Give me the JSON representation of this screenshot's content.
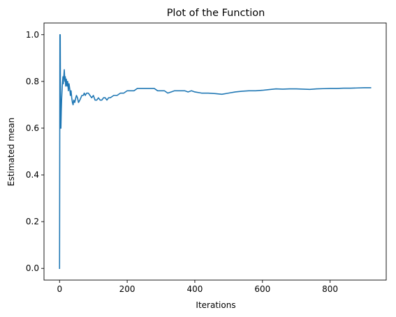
{
  "chart_data": {
    "type": "line",
    "title": "Plot of the Function",
    "xlabel": "Iterations",
    "ylabel": "Estimated mean",
    "xlim": [
      -46,
      966
    ],
    "ylim": [
      -0.05,
      1.05
    ],
    "xticks": [
      0,
      200,
      400,
      600,
      800
    ],
    "xtick_labels": [
      "0",
      "200",
      "400",
      "600",
      "800"
    ],
    "yticks": [
      0.0,
      0.2,
      0.4,
      0.6,
      0.8,
      1.0
    ],
    "ytick_labels": [
      "0.0",
      "0.2",
      "0.4",
      "0.6",
      "0.8",
      "1.0"
    ],
    "grid": false,
    "series": [
      {
        "color": "#1f77b4",
        "x": [
          0,
          1,
          2,
          3,
          4,
          5,
          6,
          7,
          8,
          9,
          10,
          11,
          12,
          13,
          14,
          15,
          16,
          17,
          18,
          19,
          20,
          22,
          24,
          26,
          28,
          30,
          32,
          34,
          36,
          38,
          40,
          42,
          45,
          48,
          50,
          53,
          56,
          60,
          63,
          66,
          70,
          73,
          76,
          80,
          85,
          90,
          95,
          100,
          105,
          110,
          115,
          120,
          125,
          130,
          135,
          140,
          145,
          150,
          160,
          170,
          180,
          190,
          200,
          210,
          220,
          230,
          240,
          250,
          260,
          270,
          280,
          290,
          300,
          310,
          320,
          330,
          340,
          350,
          360,
          370,
          380,
          390,
          400,
          420,
          440,
          460,
          480,
          500,
          520,
          540,
          560,
          580,
          600,
          620,
          640,
          660,
          680,
          700,
          720,
          740,
          760,
          780,
          800,
          820,
          840,
          860,
          880,
          900,
          920
        ],
        "y": [
          0.0,
          1.0,
          1.0,
          0.6,
          0.6,
          0.67,
          0.72,
          0.75,
          0.78,
          0.8,
          0.82,
          0.79,
          0.81,
          0.83,
          0.85,
          0.82,
          0.8,
          0.82,
          0.78,
          0.8,
          0.81,
          0.78,
          0.8,
          0.76,
          0.79,
          0.77,
          0.74,
          0.76,
          0.73,
          0.71,
          0.7,
          0.72,
          0.71,
          0.73,
          0.74,
          0.73,
          0.71,
          0.72,
          0.73,
          0.74,
          0.74,
          0.75,
          0.74,
          0.75,
          0.75,
          0.74,
          0.73,
          0.74,
          0.72,
          0.72,
          0.73,
          0.72,
          0.72,
          0.73,
          0.73,
          0.72,
          0.73,
          0.73,
          0.74,
          0.74,
          0.75,
          0.75,
          0.76,
          0.76,
          0.76,
          0.77,
          0.77,
          0.77,
          0.77,
          0.77,
          0.77,
          0.76,
          0.76,
          0.76,
          0.75,
          0.755,
          0.76,
          0.76,
          0.76,
          0.76,
          0.755,
          0.76,
          0.755,
          0.75,
          0.75,
          0.748,
          0.745,
          0.75,
          0.755,
          0.758,
          0.76,
          0.76,
          0.762,
          0.765,
          0.768,
          0.767,
          0.768,
          0.768,
          0.767,
          0.766,
          0.768,
          0.769,
          0.77,
          0.77,
          0.771,
          0.771,
          0.772,
          0.773,
          0.773
        ]
      }
    ]
  }
}
